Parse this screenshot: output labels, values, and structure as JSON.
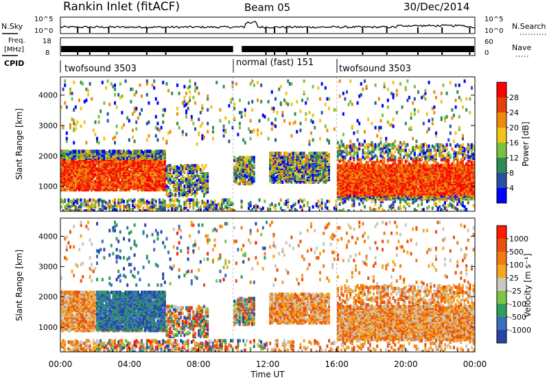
{
  "header": {
    "station": "Rankin Inlet (fitACF)",
    "beam": "Beam 05",
    "date": "30/Dec/2014"
  },
  "top_panels": {
    "nsky_label": "N.Sky",
    "nsky_ticks": [
      "10^5",
      "10^0"
    ],
    "nsearch_label": "N.Search",
    "nsearch_ticks": [
      "10^5",
      "10^0"
    ],
    "freq_label": "Freq.",
    "freq_unit": "[MHz]",
    "freq_ticks": [
      "18",
      "8"
    ],
    "nave_label": "Nave",
    "nave_ticks": [
      "60",
      "0"
    ],
    "cpid_label": "CPID"
  },
  "cpid_segments": [
    {
      "label": "twofsound 3503",
      "start_h": 0,
      "end_h": 10
    },
    {
      "label": "normal (fast) 151",
      "start_h": 10,
      "end_h": 16
    },
    {
      "label": "twofsound 3503",
      "start_h": 16,
      "end_h": 24
    }
  ],
  "chart_data": [
    {
      "type": "heatmap",
      "name": "power",
      "ylabel": "Slant Range [km]",
      "xlim": [
        0,
        24
      ],
      "ylim": [
        180,
        4600
      ],
      "yticks": [
        "1000",
        "2000",
        "3000",
        "4000"
      ],
      "colorbar_label": "Power [dB]",
      "colorbar_ticks": [
        "28",
        "24",
        "20",
        "16",
        "12",
        "8",
        "4"
      ],
      "colors": [
        "#0000ff",
        "#2b4fa3",
        "#2e8b57",
        "#7ac142",
        "#f0c418",
        "#f08a0c",
        "#e8400c",
        "#ff0000"
      ]
    },
    {
      "type": "heatmap",
      "name": "velocity",
      "ylabel": "Slant Range [km]",
      "xlabel": "Time UT",
      "xlim": [
        0,
        24
      ],
      "ylim": [
        180,
        4600
      ],
      "yticks": [
        "1000",
        "2000",
        "3000",
        "4000"
      ],
      "xticks": [
        "00:00",
        "04:00",
        "08:00",
        "12:00",
        "16:00",
        "20:00",
        "00:00"
      ],
      "colorbar_label": "Velocity [m s⁻¹]",
      "colorbar_ticks": [
        "1000",
        "500",
        "100",
        "25",
        "-25",
        "-100",
        "-500",
        "-1000"
      ],
      "colors": [
        "#2844a8",
        "#3a6ec0",
        "#2e9e5a",
        "#7cc644",
        "#c8c8c0",
        "#f5a623",
        "#f07b12",
        "#e8500e",
        "#ff1a00"
      ]
    }
  ]
}
